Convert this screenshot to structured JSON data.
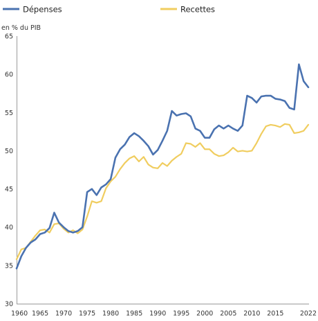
{
  "chart_data": {
    "type": "line",
    "unit_label": "en % du PIB",
    "ylim": [
      30,
      65
    ],
    "yticks": [
      30,
      35,
      40,
      45,
      50,
      55,
      60,
      65
    ],
    "xlim": [
      1960,
      2022
    ],
    "xticks": [
      1960,
      1965,
      1970,
      1975,
      1980,
      1985,
      1990,
      1995,
      2000,
      2005,
      2010,
      2015,
      2022
    ],
    "grid": false,
    "legend_position": "top",
    "colors": {
      "depenses": "#4a72b0",
      "recettes": "#f0cd5f"
    },
    "x": [
      1960,
      1961,
      1962,
      1963,
      1964,
      1965,
      1966,
      1967,
      1968,
      1969,
      1970,
      1971,
      1972,
      1973,
      1974,
      1975,
      1976,
      1977,
      1978,
      1979,
      1980,
      1981,
      1982,
      1983,
      1984,
      1985,
      1986,
      1987,
      1988,
      1989,
      1990,
      1991,
      1992,
      1993,
      1994,
      1995,
      1996,
      1997,
      1998,
      1999,
      2000,
      2001,
      2002,
      2003,
      2004,
      2005,
      2006,
      2007,
      2008,
      2009,
      2010,
      2011,
      2012,
      2013,
      2014,
      2015,
      2016,
      2017,
      2018,
      2019,
      2020,
      2021,
      2022
    ],
    "series": [
      {
        "name": "Dépenses",
        "values": [
          34.6,
          36.2,
          37.3,
          38.0,
          38.4,
          39.1,
          39.3,
          39.9,
          41.9,
          40.6,
          40.0,
          39.5,
          39.3,
          39.5,
          40.0,
          44.6,
          45.0,
          44.2,
          45.2,
          45.6,
          46.3,
          49.1,
          50.2,
          50.8,
          51.8,
          52.3,
          51.9,
          51.3,
          50.6,
          49.5,
          50.1,
          51.3,
          52.6,
          55.2,
          54.6,
          54.8,
          54.9,
          54.5,
          52.9,
          52.6,
          51.7,
          51.7,
          52.8,
          53.3,
          52.9,
          53.3,
          52.9,
          52.6,
          53.3,
          57.2,
          56.9,
          56.3,
          57.1,
          57.2,
          57.2,
          56.8,
          56.7,
          56.5,
          55.6,
          55.4,
          61.3,
          59.1,
          58.3
        ]
      },
      {
        "name": "Recettes",
        "values": [
          35.8,
          37.1,
          37.3,
          38.1,
          38.9,
          39.6,
          39.7,
          39.3,
          40.4,
          40.5,
          39.8,
          39.3,
          39.6,
          39.2,
          39.7,
          41.4,
          43.4,
          43.2,
          43.4,
          45.1,
          46.0,
          46.6,
          47.6,
          48.4,
          49.0,
          49.3,
          48.6,
          49.2,
          48.2,
          47.8,
          47.7,
          48.4,
          48.0,
          48.7,
          49.2,
          49.6,
          51.0,
          50.9,
          50.5,
          51.0,
          50.2,
          50.2,
          49.6,
          49.3,
          49.4,
          49.8,
          50.4,
          49.9,
          50.0,
          49.9,
          50.0,
          51.0,
          52.2,
          53.2,
          53.4,
          53.3,
          53.1,
          53.5,
          53.4,
          52.3,
          52.4,
          52.6,
          53.4
        ]
      }
    ]
  }
}
